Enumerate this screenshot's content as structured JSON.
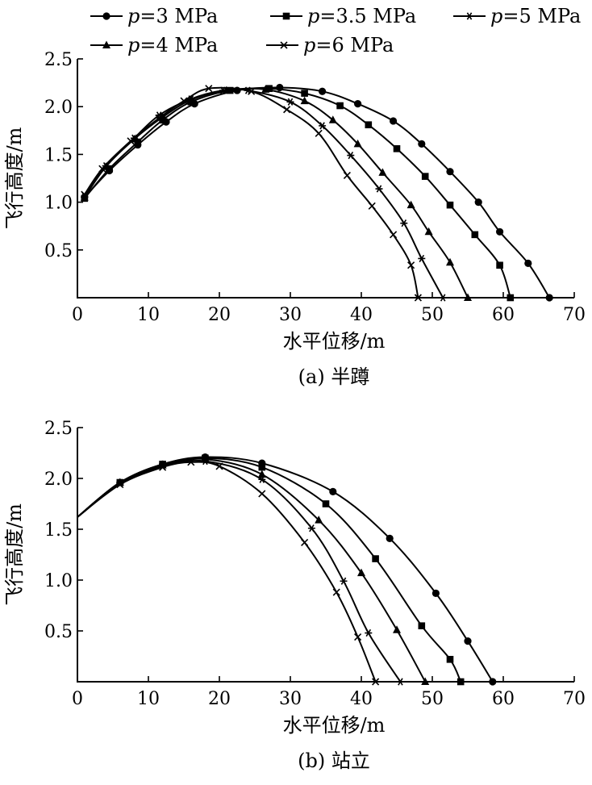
{
  "legend": [
    {
      "p": "p",
      "rest": "=3 MPa",
      "marker": "circle"
    },
    {
      "p": "p",
      "rest": "=3.5 MPa",
      "marker": "square"
    },
    {
      "p": "p",
      "rest": "=5 MPa",
      "marker": "asterisk"
    },
    {
      "p": "p",
      "rest": "=4 MPa",
      "marker": "triangle"
    },
    {
      "p": "p",
      "rest": "=6 MPa",
      "marker": "cross"
    }
  ],
  "chart_data": [
    {
      "type": "line",
      "caption": "(a) 半蹲",
      "xlabel": "水平位移/m",
      "ylabel": "飞行高度/m",
      "xlim": [
        0,
        70
      ],
      "ylim": [
        0,
        2.5
      ],
      "xticks": [
        "0",
        "10",
        "20",
        "30",
        "40",
        "50",
        "60",
        "70"
      ],
      "yticks": [
        "0.5",
        "1.0",
        "1.5",
        "2.0",
        "2.5"
      ],
      "grid": false,
      "series": [
        {
          "name": "p=3 MPa",
          "marker": "circle",
          "points": [
            [
              1,
              1.05
            ],
            [
              4.5,
              1.33
            ],
            [
              8.5,
              1.6
            ],
            [
              12.5,
              1.84
            ],
            [
              16.5,
              2.03
            ],
            [
              22.5,
              2.17
            ],
            [
              28.5,
              2.2
            ],
            [
              34.5,
              2.16
            ],
            [
              39.5,
              2.03
            ],
            [
              44.5,
              1.85
            ],
            [
              48.5,
              1.61
            ],
            [
              52.5,
              1.32
            ],
            [
              56.5,
              1.0
            ],
            [
              59.5,
              0.69
            ],
            [
              63.5,
              0.36
            ],
            [
              66.5,
              0
            ]
          ]
        },
        {
          "name": "p=3.5 MPa",
          "marker": "square",
          "points": [
            [
              1,
              1.04
            ],
            [
              4.5,
              1.35
            ],
            [
              8.5,
              1.63
            ],
            [
              12,
              1.86
            ],
            [
              16,
              2.05
            ],
            [
              21.5,
              2.17
            ],
            [
              27,
              2.19
            ],
            [
              32,
              2.14
            ],
            [
              37,
              2.01
            ],
            [
              41,
              1.81
            ],
            [
              45,
              1.56
            ],
            [
              49,
              1.27
            ],
            [
              52.5,
              0.97
            ],
            [
              56,
              0.66
            ],
            [
              59.5,
              0.34
            ],
            [
              61,
              0
            ]
          ]
        },
        {
          "name": "p=5 MPa",
          "marker": "asterisk",
          "points": [
            [
              1,
              1.06
            ],
            [
              4,
              1.38
            ],
            [
              8,
              1.67
            ],
            [
              11.5,
              1.91
            ],
            [
              16,
              2.08
            ],
            [
              20.5,
              2.17
            ],
            [
              24,
              2.17
            ],
            [
              30,
              2.05
            ],
            [
              34.5,
              1.8
            ],
            [
              38.5,
              1.49
            ],
            [
              42.5,
              1.14
            ],
            [
              46,
              0.78
            ],
            [
              48.5,
              0.41
            ],
            [
              51.5,
              0
            ]
          ]
        },
        {
          "name": "p=4 MPa",
          "marker": "triangle",
          "points": [
            [
              1,
              1.05
            ],
            [
              4,
              1.37
            ],
            [
              8,
              1.66
            ],
            [
              12,
              1.89
            ],
            [
              16,
              2.07
            ],
            [
              21,
              2.17
            ],
            [
              26.5,
              2.18
            ],
            [
              32,
              2.06
            ],
            [
              36,
              1.86
            ],
            [
              39.5,
              1.61
            ],
            [
              43,
              1.31
            ],
            [
              47,
              0.97
            ],
            [
              49.5,
              0.69
            ],
            [
              52.5,
              0.37
            ],
            [
              55,
              0
            ]
          ]
        },
        {
          "name": "p=6 MPa",
          "marker": "cross",
          "points": [
            [
              1,
              1.08
            ],
            [
              3.5,
              1.35
            ],
            [
              7.5,
              1.64
            ],
            [
              11.5,
              1.88
            ],
            [
              15,
              2.06
            ],
            [
              18.5,
              2.19
            ],
            [
              24.5,
              2.16
            ],
            [
              29.5,
              1.97
            ],
            [
              34,
              1.72
            ],
            [
              38,
              1.28
            ],
            [
              41.5,
              0.96
            ],
            [
              44.5,
              0.66
            ],
            [
              47,
              0.34
            ],
            [
              48,
              0
            ]
          ]
        }
      ]
    },
    {
      "type": "line",
      "caption": "(b) 站立",
      "xlabel": "水平位移/m",
      "ylabel": "飞行高度/m",
      "xlim": [
        0,
        70
      ],
      "ylim": [
        0,
        2.5
      ],
      "xticks": [
        "0",
        "10",
        "20",
        "30",
        "40",
        "50",
        "60",
        "70"
      ],
      "yticks": [
        "0.5",
        "1.0",
        "1.5",
        "2.0",
        "2.5"
      ],
      "grid": false,
      "series": [
        {
          "name": "p=3 MPa",
          "marker": "circle",
          "points": [
            [
              0,
              1.62
            ],
            [
              6,
              1.96
            ],
            [
              12,
              2.14
            ],
            [
              18,
              2.21
            ],
            [
              26,
              2.15
            ],
            [
              36,
              1.87
            ],
            [
              44,
              1.41
            ],
            [
              50.5,
              0.87
            ],
            [
              55,
              0.4
            ],
            [
              58.5,
              0
            ]
          ]
        },
        {
          "name": "p=3.5 MPa",
          "marker": "square",
          "points": [
            [
              0,
              1.62
            ],
            [
              6,
              1.96
            ],
            [
              12,
              2.14
            ],
            [
              18,
              2.2
            ],
            [
              26,
              2.11
            ],
            [
              35,
              1.75
            ],
            [
              42,
              1.21
            ],
            [
              48.5,
              0.55
            ],
            [
              52.5,
              0.22
            ],
            [
              54,
              0
            ]
          ]
        },
        {
          "name": "p=5 MPa",
          "marker": "asterisk",
          "points": [
            [
              0,
              1.62
            ],
            [
              6,
              1.95
            ],
            [
              12,
              2.12
            ],
            [
              18,
              2.17
            ],
            [
              26,
              1.99
            ],
            [
              33,
              1.51
            ],
            [
              37.5,
              0.99
            ],
            [
              41,
              0.48
            ],
            [
              45.5,
              0
            ]
          ]
        },
        {
          "name": "p=4 MPa",
          "marker": "triangle",
          "points": [
            [
              0,
              1.62
            ],
            [
              6,
              1.96
            ],
            [
              12,
              2.13
            ],
            [
              18,
              2.19
            ],
            [
              26,
              2.04
            ],
            [
              34,
              1.59
            ],
            [
              40,
              1.07
            ],
            [
              45,
              0.51
            ],
            [
              49,
              0
            ]
          ]
        },
        {
          "name": "p=6 MPa",
          "marker": "cross",
          "points": [
            [
              0,
              1.62
            ],
            [
              6,
              1.94
            ],
            [
              12,
              2.11
            ],
            [
              16,
              2.16
            ],
            [
              20,
              2.12
            ],
            [
              26,
              1.85
            ],
            [
              32,
              1.37
            ],
            [
              36.5,
              0.88
            ],
            [
              39.5,
              0.44
            ],
            [
              42,
              0
            ]
          ]
        }
      ]
    }
  ]
}
